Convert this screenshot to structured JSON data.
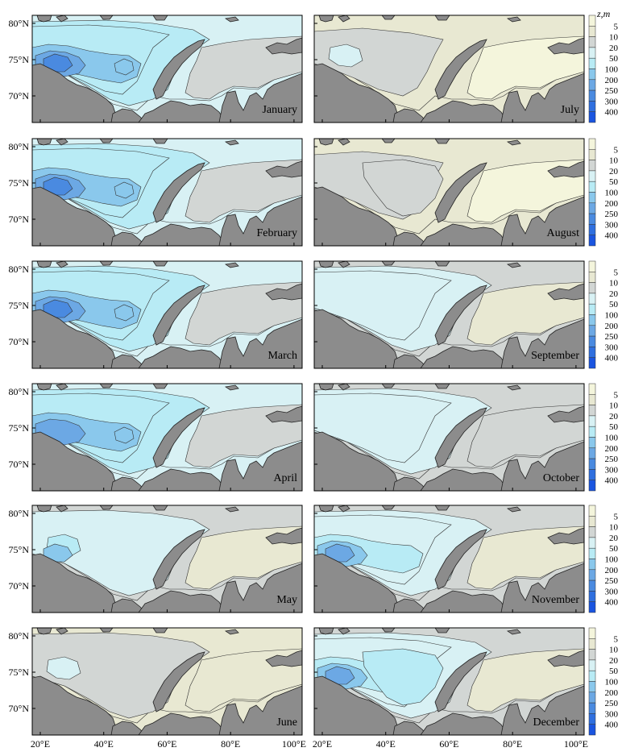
{
  "lat_labels": [
    "80°N",
    "75°N",
    "70°N"
  ],
  "lon_labels": [
    "20°E",
    "40°E",
    "60°E",
    "80°E",
    "100°E"
  ],
  "colorbar": {
    "title": "z,m",
    "levels": [
      "5",
      "10",
      "20",
      "50",
      "100",
      "200",
      "250",
      "300",
      "400"
    ],
    "colors": [
      "#f4f5dc",
      "#e8e8d2",
      "#d2d6d4",
      "#d8f1f4",
      "#b8ebf5",
      "#8ac8ec",
      "#6ca8e4",
      "#4a8ae0",
      "#2f6fdf",
      "#1a55e0"
    ]
  },
  "panels": [
    {
      "month": "January",
      "mode": "winter",
      "intensity": 3
    },
    {
      "month": "July",
      "mode": "summer",
      "intensity": 0
    },
    {
      "month": "February",
      "mode": "winter",
      "intensity": 3
    },
    {
      "month": "August",
      "mode": "summer",
      "intensity": 1
    },
    {
      "month": "March",
      "mode": "winter",
      "intensity": 3
    },
    {
      "month": "September",
      "mode": "autumn",
      "intensity": 0
    },
    {
      "month": "April",
      "mode": "winter",
      "intensity": 2
    },
    {
      "month": "October",
      "mode": "autumn",
      "intensity": 1
    },
    {
      "month": "May",
      "mode": "spring",
      "intensity": 1
    },
    {
      "month": "November",
      "mode": "late",
      "intensity": 2
    },
    {
      "month": "June",
      "mode": "spring",
      "intensity": 0
    },
    {
      "month": "December",
      "mode": "late",
      "intensity": 3
    }
  ]
}
